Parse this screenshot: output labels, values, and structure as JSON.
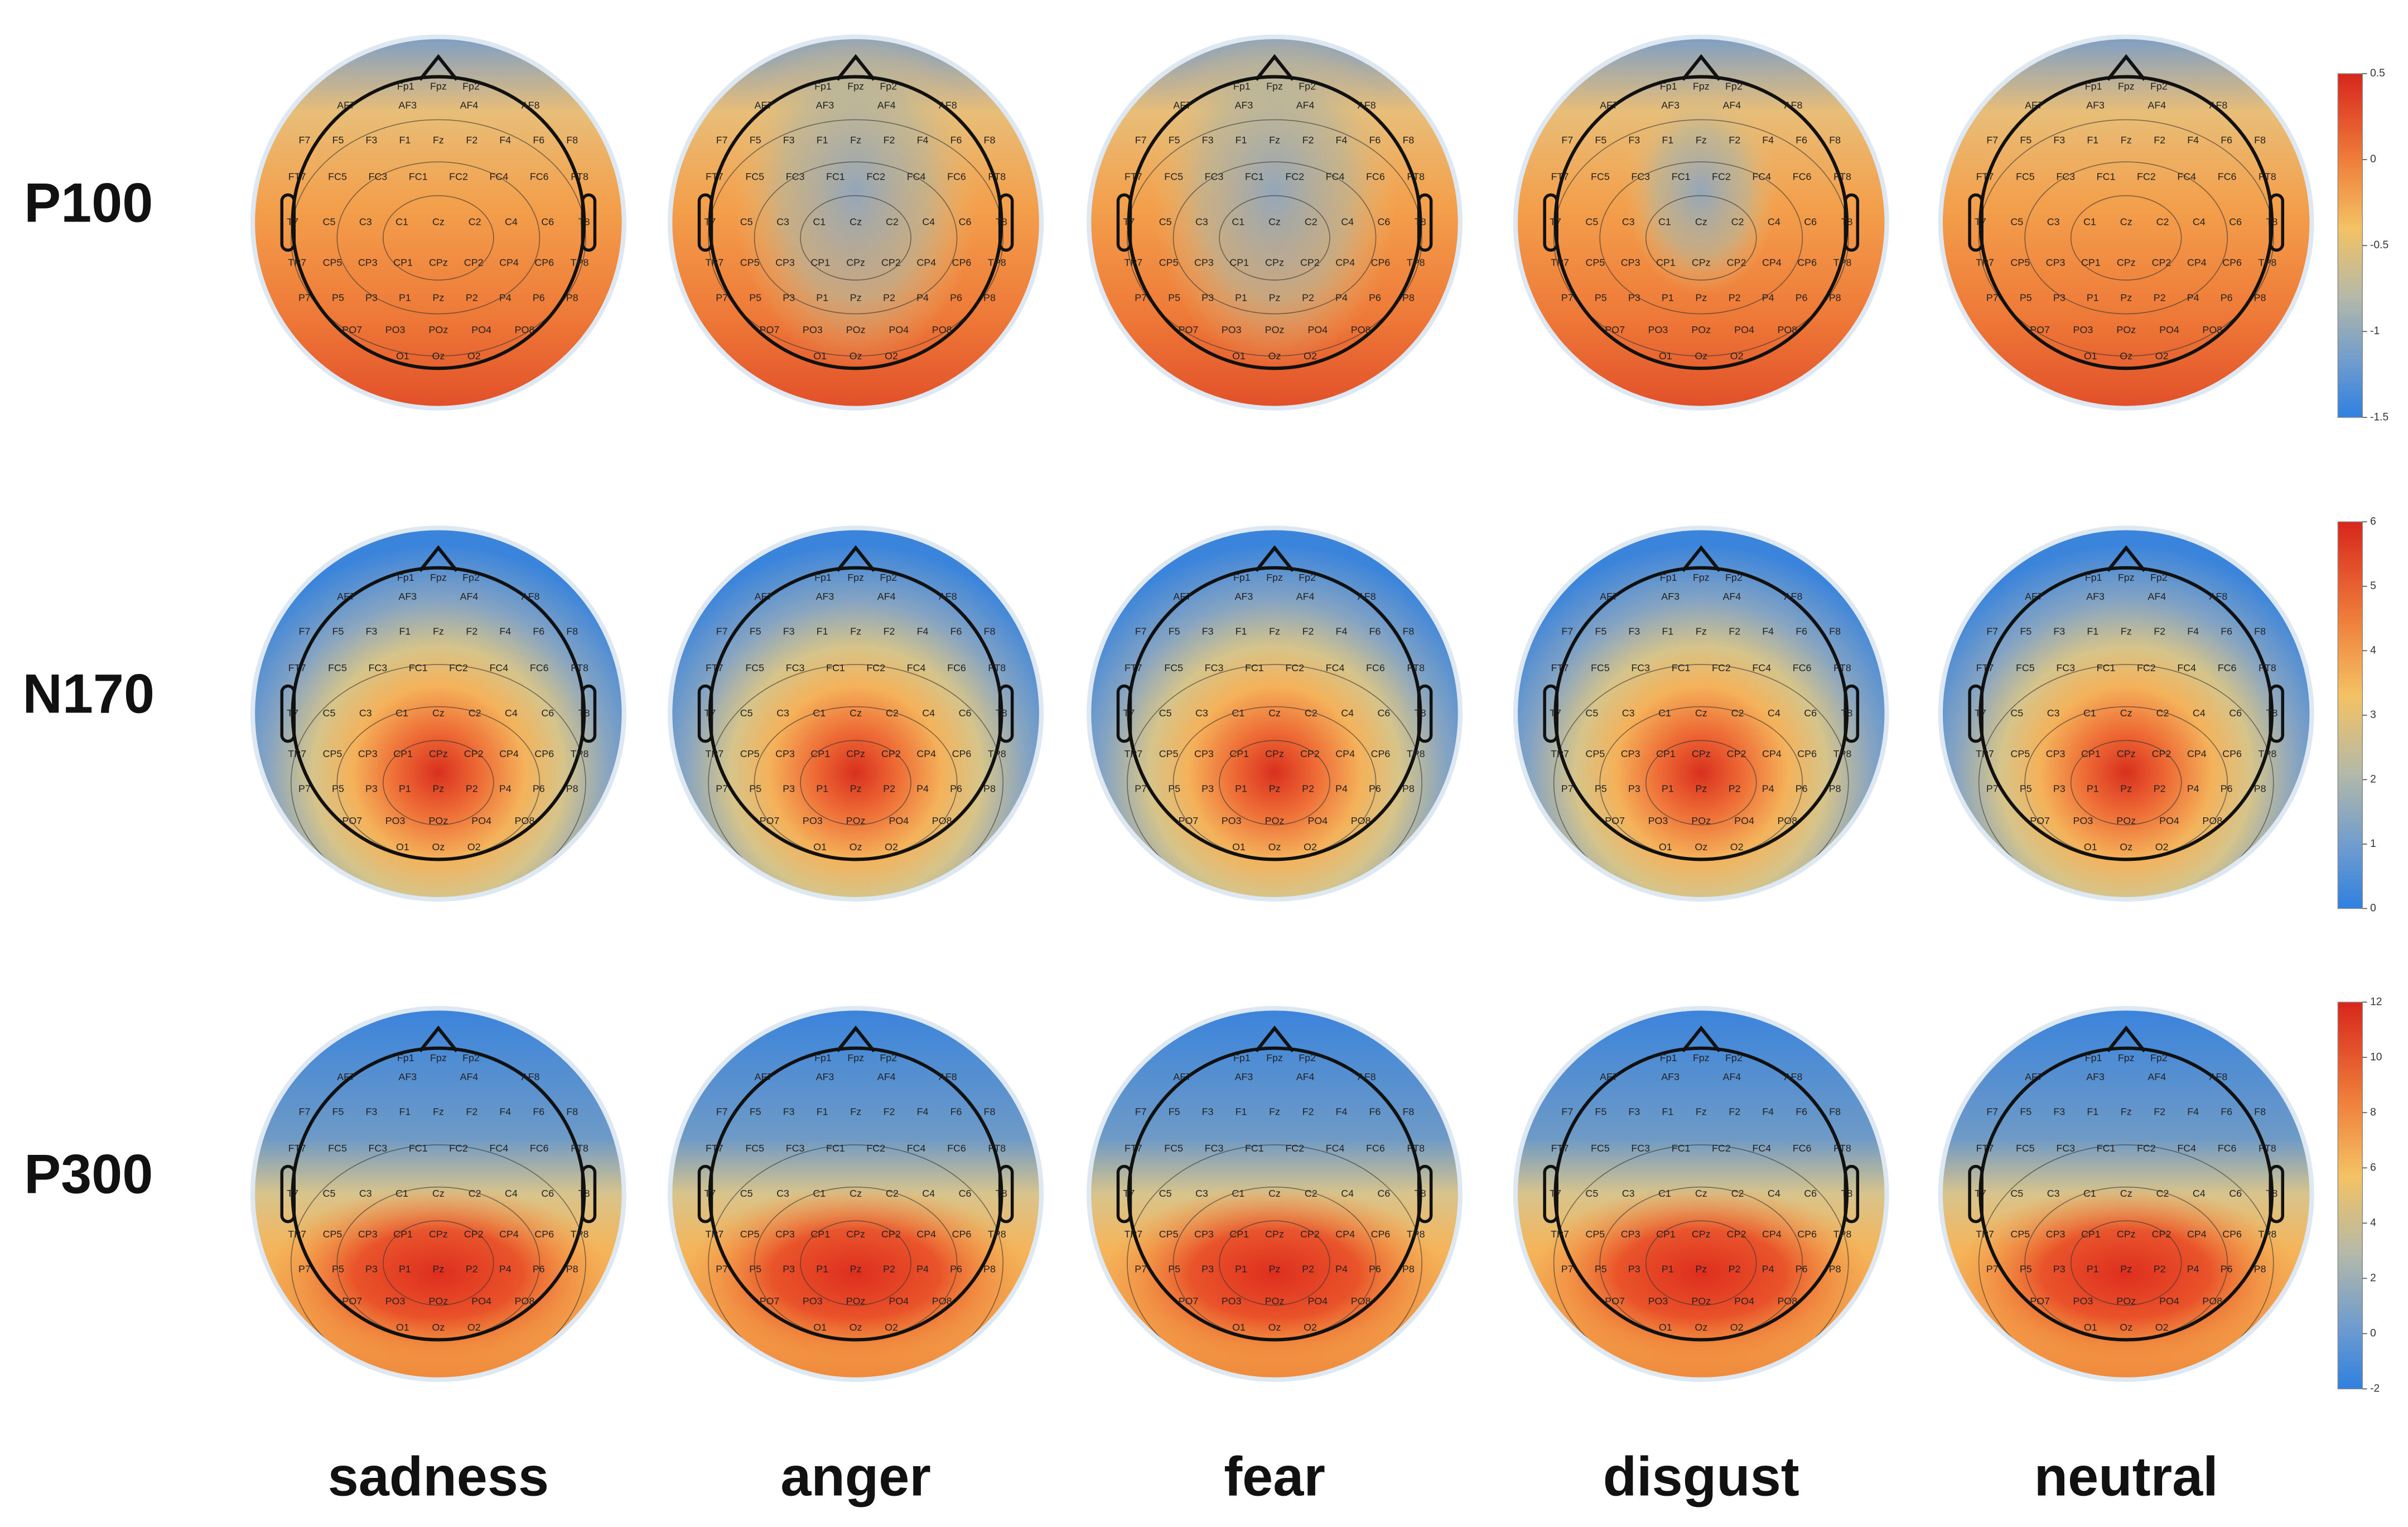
{
  "rows": [
    "P100",
    "N170",
    "P300"
  ],
  "columns": [
    "sadness",
    "anger",
    "fear",
    "disgust",
    "neutral"
  ],
  "colorbars": [
    {
      "lim": [
        -1.5,
        0.5
      ],
      "ticks": [
        0.5,
        0,
        -0.5,
        -1,
        -1.5
      ]
    },
    {
      "lim": [
        0,
        6
      ],
      "ticks": [
        0,
        1,
        2,
        3,
        4,
        5,
        6
      ]
    },
    {
      "lim": [
        -2,
        12
      ],
      "ticks": [
        -2,
        0,
        2,
        4,
        6,
        8,
        10,
        12
      ]
    }
  ],
  "electrodes": [
    [
      "Fp1",
      "Fpz",
      "Fp2"
    ],
    [
      "AF7",
      "AF3",
      "AF4",
      "AF8"
    ],
    [
      "F7",
      "F5",
      "F3",
      "F1",
      "Fz",
      "F2",
      "F4",
      "F6",
      "F8"
    ],
    [
      "FT7",
      "FC5",
      "FC3",
      "FC1",
      "FC2",
      "FC4",
      "FC6",
      "FT8"
    ],
    [
      "T7",
      "C5",
      "C3",
      "C1",
      "Cz",
      "C2",
      "C4",
      "C6",
      "T8"
    ],
    [
      "TP7",
      "CP5",
      "CP3",
      "CP1",
      "CPz",
      "CP2",
      "CP4",
      "CP6",
      "TP8"
    ],
    [
      "P7",
      "P5",
      "P3",
      "P1",
      "Pz",
      "P2",
      "P4",
      "P6",
      "P8"
    ],
    [
      "PO7",
      "PO3",
      "POz",
      "PO4",
      "PO8"
    ],
    [
      "O1",
      "Oz",
      "O2"
    ]
  ]
}
